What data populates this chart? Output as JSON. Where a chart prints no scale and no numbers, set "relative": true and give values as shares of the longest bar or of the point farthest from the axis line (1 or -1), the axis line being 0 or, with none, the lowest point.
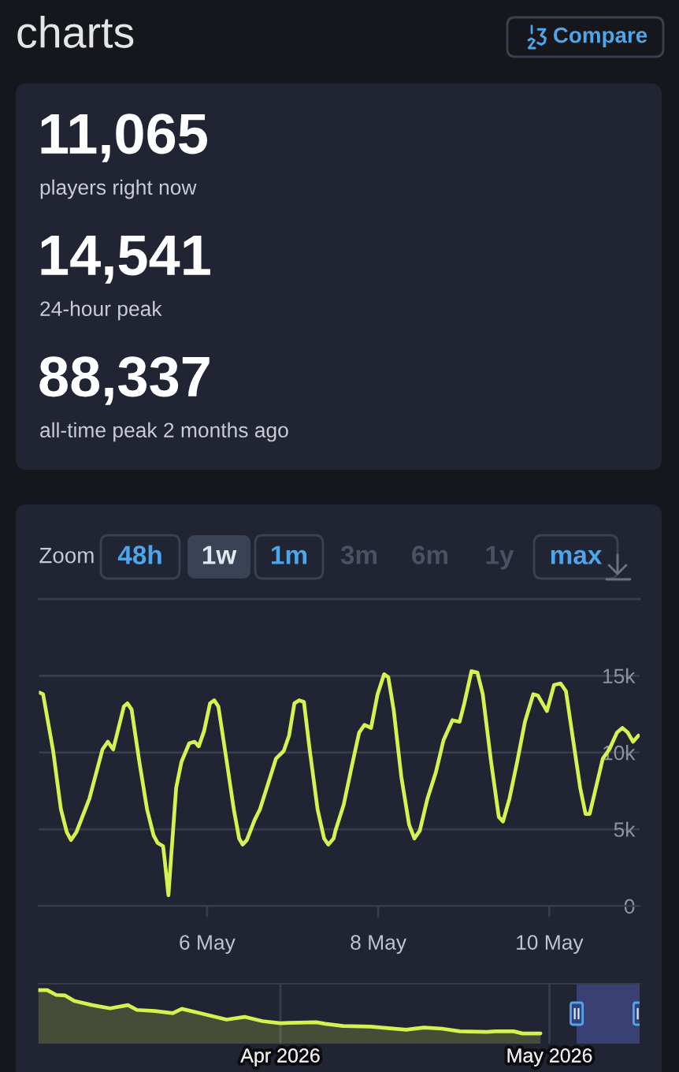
{
  "chart_data": [
    {
      "type": "other",
      "title": "charts",
      "annotations": [
        "Compare",
        "11,065",
        "players right now",
        "14,541",
        "24-hour peak",
        "88,337",
        "all-time peak 2 months ago"
      ]
    },
    {
      "type": "line",
      "annotations": [
        "Zoom",
        "48h",
        "1w",
        "1m",
        "3m",
        "6m",
        "1y",
        "max"
      ],
      "line_style": "solid",
      "grid": "y",
      "x": [
        "2026-05-04T01:00",
        "2026-05-04T02:00",
        "2026-05-04T04:50",
        "2026-05-04T07:00",
        "2026-05-04T08:40",
        "2026-05-04T09:50",
        "2026-05-04T11:20",
        "2026-05-04T15:00",
        "2026-05-04T18:40",
        "2026-05-04T20:10",
        "2026-05-04T21:40",
        "2026-05-04T23:10",
        "2026-05-05T00:40",
        "2026-05-05T01:40",
        "2026-05-05T02:50",
        "2026-05-05T05:00",
        "2026-05-05T07:10",
        "2026-05-05T09:00",
        "2026-05-05T10:10",
        "2026-05-05T11:40",
        "2026-05-05T12:10",
        "2026-05-05T13:10",
        "2026-05-05T13:50",
        "2026-05-05T15:20",
        "2026-05-05T16:50",
        "2026-05-05T19:00",
        "2026-05-05T20:30",
        "2026-05-05T21:40",
        "2026-05-05T23:10",
        "2026-05-06T00:50",
        "2026-05-06T02:00",
        "2026-05-06T03:10",
        "2026-05-06T05:20",
        "2026-05-06T07:30",
        "2026-05-06T09:00",
        "2026-05-06T10:00",
        "2026-05-06T11:10",
        "2026-05-06T13:20",
        "2026-05-06T14:50",
        "2026-05-06T17:10",
        "2026-05-06T19:20",
        "2026-05-06T21:30",
        "2026-05-06T23:00",
        "2026-05-07T00:30",
        "2026-05-07T01:50",
        "2026-05-07T03:10",
        "2026-05-07T04:50",
        "2026-05-07T07:00",
        "2026-05-07T08:50",
        "2026-05-07T10:00",
        "2026-05-07T11:30",
        "2026-05-07T12:00",
        "2026-05-07T14:20",
        "2026-05-07T16:30",
        "2026-05-07T18:40",
        "2026-05-07T20:10",
        "2026-05-07T22:00",
        "2026-05-07T23:50",
        "2026-05-08T01:40",
        "2026-05-08T02:50",
        "2026-05-08T04:20",
        "2026-05-08T06:30",
        "2026-05-08T08:40",
        "2026-05-08T10:10",
        "2026-05-08T11:40",
        "2026-05-08T13:50",
        "2026-05-08T16:10",
        "2026-05-08T18:20",
        "2026-05-08T20:50",
        "2026-05-08T22:50",
        "2026-05-09T00:10",
        "2026-05-09T02:10",
        "2026-05-09T03:50",
        "2026-05-09T05:20",
        "2026-05-09T07:40",
        "2026-05-09T09:50",
        "2026-05-09T11:00",
        "2026-05-09T12:50",
        "2026-05-09T15:00",
        "2026-05-09T17:10",
        "2026-05-09T19:30",
        "2026-05-09T20:50",
        "2026-05-09T23:20",
        "2026-05-10T01:20",
        "2026-05-10T03:10",
        "2026-05-10T04:40",
        "2026-05-10T06:30",
        "2026-05-10T08:40",
        "2026-05-10T10:10",
        "2026-05-10T11:20",
        "2026-05-10T13:10",
        "2026-05-10T15:00",
        "2026-05-10T16:50",
        "2026-05-10T19:00",
        "2026-05-10T20:30",
        "2026-05-10T22:00",
        "2026-05-10T23:30",
        "2026-05-11T01:00"
      ],
      "series": [
        {
          "color": "#d6f251",
          "values": [
            13900,
            13800,
            10100,
            6300,
            4800,
            4300,
            4800,
            7000,
            10200,
            10700,
            10200,
            11600,
            13000,
            13200,
            12800,
            9400,
            6300,
            4600,
            4100,
            3900,
            2900,
            700,
            2900,
            7700,
            9400,
            10600,
            10700,
            10400,
            11400,
            13200,
            13400,
            13000,
            9700,
            6300,
            4400,
            4000,
            4300,
            5600,
            6300,
            8000,
            9600,
            10100,
            11100,
            13200,
            13400,
            13300,
            10100,
            6300,
            4400,
            4000,
            4400,
            4900,
            6600,
            9000,
            11300,
            11800,
            11600,
            13800,
            15100,
            14900,
            12800,
            8400,
            5300,
            4400,
            4900,
            7000,
            8700,
            10800,
            12100,
            12000,
            13200,
            15300,
            15200,
            13800,
            9400,
            5800,
            5500,
            7000,
            9400,
            12000,
            13800,
            13700,
            12700,
            14400,
            14500,
            14000,
            11100,
            7700,
            6000,
            6000,
            7800,
            9600,
            10200,
            11300,
            11600,
            11300,
            10700,
            11100
          ]
        }
      ],
      "xlim": [
        "2026-05-04T00:50",
        "2026-05-11T01:20"
      ],
      "xticks": [
        {
          "value": "2026-05-06",
          "label": "6 May"
        },
        {
          "value": "2026-05-08",
          "label": "8 May"
        },
        {
          "value": "2026-05-10",
          "label": "10 May"
        }
      ],
      "ylim": [
        0,
        16000
      ],
      "yticks": [
        0,
        {
          "value": 5000,
          "label": "5k"
        },
        {
          "value": 10000,
          "label": "10k"
        },
        {
          "value": 15000,
          "label": "15k"
        }
      ]
    },
    {
      "type": "area",
      "relative": true,
      "grid": "x",
      "x": [
        "2026-03-05",
        "2026-03-06",
        "2026-03-07",
        "2026-03-08",
        "2026-03-09",
        "2026-03-11",
        "2026-03-13",
        "2026-03-15",
        "2026-03-16",
        "2026-03-18",
        "2026-03-20",
        "2026-03-21",
        "2026-03-23",
        "2026-03-25",
        "2026-03-26",
        "2026-03-28",
        "2026-03-30",
        "2026-04-01",
        "2026-04-02",
        "2026-04-05",
        "2026-04-06",
        "2026-04-08",
        "2026-04-11",
        "2026-04-13",
        "2026-04-15",
        "2026-04-17",
        "2026-04-19",
        "2026-04-21",
        "2026-04-24",
        "2026-04-25",
        "2026-04-27",
        "2026-04-28",
        "2026-04-30"
      ],
      "series": [
        {
          "color": "#d6f251",
          "values": [
            1.0,
            1.0,
            0.91,
            0.9,
            0.8,
            0.72,
            0.66,
            0.72,
            0.63,
            0.61,
            0.57,
            0.65,
            0.57,
            0.49,
            0.45,
            0.5,
            0.42,
            0.38,
            0.39,
            0.4,
            0.37,
            0.33,
            0.32,
            0.29,
            0.26,
            0.3,
            0.28,
            0.23,
            0.22,
            0.23,
            0.23,
            0.19,
            0.19
          ]
        }
      ],
      "xlim": [
        "2026-03-05",
        "2026-05-11T01:20"
      ],
      "xticks": [
        {
          "value": "2026-04-01",
          "label": "Apr 2026"
        },
        {
          "value": "2026-05-01",
          "label": "May 2026"
        }
      ],
      "bands": [
        {
          "axis": "x",
          "from": "2026-05-04T00:50",
          "to": "2026-05-11T01:20",
          "color": "#3d4680"
        }
      ]
    }
  ]
}
